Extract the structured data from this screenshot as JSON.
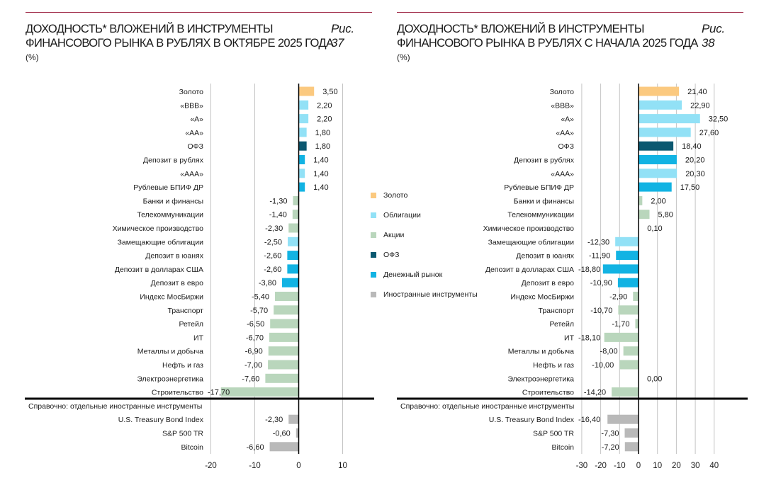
{
  "colors": {
    "gold": "#fbc97f",
    "bonds": "#92e1f6",
    "stocks": "#b9d6bc",
    "ofz": "#0b5870",
    "money": "#12b3e3",
    "foreign": "#b9b9b9",
    "accent_line": "#a3324f"
  },
  "legend": [
    {
      "key": "gold",
      "label": "Золото"
    },
    {
      "key": "bonds",
      "label": "Облигации"
    },
    {
      "key": "stocks",
      "label": "Акции"
    },
    {
      "key": "ofz",
      "label": "ОФЗ"
    },
    {
      "key": "money",
      "label": "Денежный рынок"
    },
    {
      "key": "foreign",
      "label": "Иностранные инструменты"
    }
  ],
  "chart_data": [
    {
      "type": "bar",
      "orientation": "horizontal",
      "figure_label": "Рис. 37",
      "title_lines": [
        "ДОХОДНОСТЬ* ВЛОЖЕНИЙ В ИНСТРУМЕНТЫ",
        "ФИНАНСОВОГО РЫНКА В РУБЛЯХ В ОКТЯБРЕ 2025 ГОДА"
      ],
      "unit": "(%)",
      "xlim": [
        -20,
        10
      ],
      "xticks": [
        -20,
        -10,
        0,
        10
      ],
      "grid": true,
      "categories": [
        "Золото",
        "«BBB»",
        "«A»",
        "«AA»",
        "ОФЗ",
        "Депозит в рублях",
        "«AAA»",
        "Рублевые БПИФ ДР",
        "Банки и финансы",
        "Телекоммуникации",
        "Химическое производство",
        "Замещающие облигации",
        "Депозит в юанях",
        "Депозит в долларах США",
        "Депозит в евро",
        "Индекс МосБиржи",
        "Транспорт",
        "Ретейл",
        "ИТ",
        "Металлы и добыча",
        "Нефть и газ",
        "Электроэнергетика",
        "Строительство"
      ],
      "groups": [
        "gold",
        "bonds",
        "bonds",
        "bonds",
        "ofz",
        "money",
        "bonds",
        "money",
        "stocks",
        "stocks",
        "stocks",
        "bonds",
        "money",
        "money",
        "money",
        "stocks",
        "stocks",
        "stocks",
        "stocks",
        "stocks",
        "stocks",
        "stocks",
        "stocks"
      ],
      "values": [
        3.5,
        2.2,
        2.2,
        1.8,
        1.8,
        1.4,
        1.4,
        1.4,
        -1.3,
        -1.4,
        -2.3,
        -2.5,
        -2.6,
        -2.6,
        -3.8,
        -5.4,
        -5.7,
        -6.5,
        -6.7,
        -6.9,
        -7.0,
        -7.6,
        -17.7
      ],
      "reference_heading": "Справочно: отдельные иностранные инструменты",
      "reference_categories": [
        "U.S. Treasury Bond Index",
        "S&P 500 TR",
        "Bitcoin"
      ],
      "reference_values": [
        -2.3,
        -0.6,
        -6.6
      ]
    },
    {
      "type": "bar",
      "orientation": "horizontal",
      "figure_label": "Рис. 38",
      "title_lines": [
        "ДОХОДНОСТЬ* ВЛОЖЕНИЙ В ИНСТРУМЕНТЫ",
        "ФИНАНСОВОГО РЫНКА В РУБЛЯХ С НАЧАЛА 2025 ГОДА"
      ],
      "unit": "(%)",
      "xlim": [
        -30,
        40
      ],
      "xticks": [
        -30,
        -20,
        -10,
        0,
        10,
        20,
        30,
        40
      ],
      "grid": true,
      "categories": [
        "Золото",
        "«BBB»",
        "«A»",
        "«AA»",
        "ОФЗ",
        "Депозит в рублях",
        "«AAA»",
        "Рублевые БПИФ ДР",
        "Банки и финансы",
        "Телекоммуникации",
        "Химическое производство",
        "Замещающие облигации",
        "Депозит в юанях",
        "Депозит в долларах США",
        "Депозит в евро",
        "Индекс МосБиржи",
        "Транспорт",
        "Ретейл",
        "ИТ",
        "Металлы и добыча",
        "Нефть и газ",
        "Электроэнергетика",
        "Строительство"
      ],
      "groups": [
        "gold",
        "bonds",
        "bonds",
        "bonds",
        "ofz",
        "money",
        "bonds",
        "money",
        "stocks",
        "stocks",
        "stocks",
        "bonds",
        "money",
        "money",
        "money",
        "stocks",
        "stocks",
        "stocks",
        "stocks",
        "stocks",
        "stocks",
        "stocks",
        "stocks"
      ],
      "values": [
        21.4,
        22.9,
        32.5,
        27.6,
        18.4,
        20.2,
        20.3,
        17.5,
        2.0,
        5.8,
        0.1,
        -12.3,
        -11.9,
        -18.8,
        -10.9,
        -2.9,
        -10.7,
        -1.7,
        -18.1,
        -8.0,
        -10.0,
        0.0,
        -14.2
      ],
      "reference_heading": "Справочно: отдельные иностранные инструменты",
      "reference_categories": [
        "U.S. Treasury Bond Index",
        "S&P 500 TR",
        "Bitcoin"
      ],
      "reference_values": [
        -16.4,
        -7.3,
        -7.2
      ]
    }
  ]
}
